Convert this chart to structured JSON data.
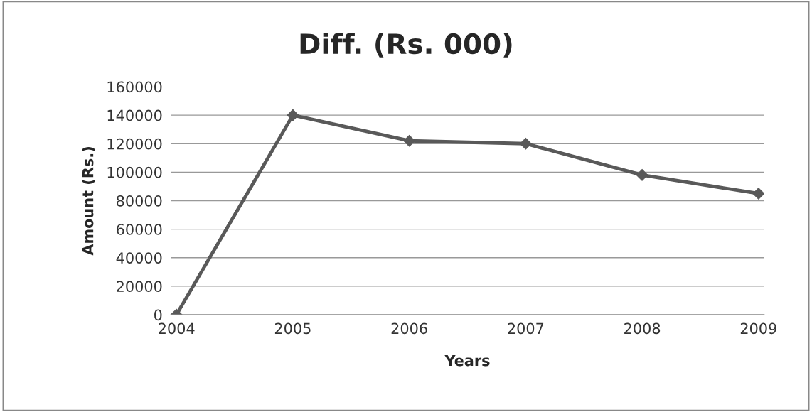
{
  "chart_data": {
    "type": "line",
    "title": "Diff. (Rs. 000)",
    "xlabel": "Years",
    "ylabel": "Amount (Rs.)",
    "categories": [
      "2004",
      "2005",
      "2006",
      "2007",
      "2008",
      "2009"
    ],
    "series": [
      {
        "color": "#595959",
        "values": [
          0,
          140000,
          122000,
          120000,
          98000,
          85000
        ]
      }
    ],
    "ylim": [
      0,
      160000
    ],
    "yticks": [
      0,
      20000,
      40000,
      60000,
      80000,
      100000,
      120000,
      140000,
      160000
    ],
    "grid": "y",
    "marker": "diamond",
    "line_style": "solid"
  }
}
